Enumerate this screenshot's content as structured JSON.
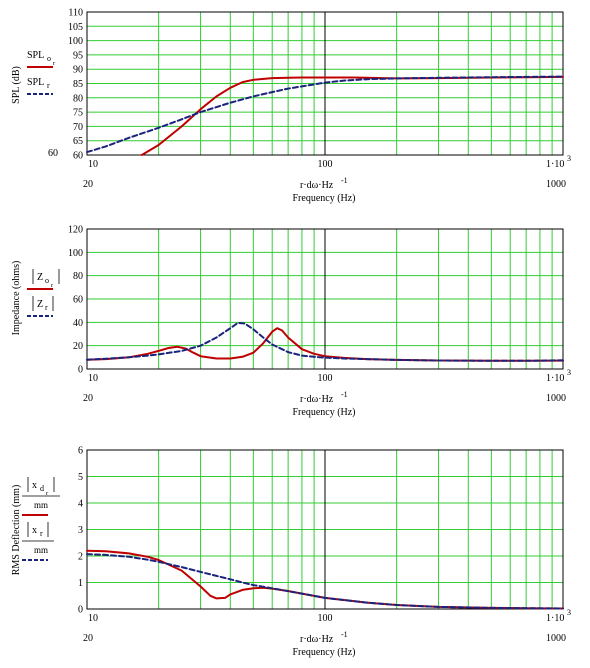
{
  "chart_data": [
    {
      "type": "line",
      "xscale": "log",
      "xlim": [
        10,
        1000
      ],
      "ylim": [
        60,
        110
      ],
      "ylabel": "SPL (dB)",
      "xlabel_expr": "r·dω·Hz",
      "xlabel_exp": "-1",
      "xlabel": "Frequency (Hz)",
      "y_ticks": [
        60,
        65,
        70,
        75,
        80,
        85,
        90,
        95,
        100,
        105,
        110
      ],
      "y_extra_tick": "60",
      "x_tick_labels": [
        "10",
        "100",
        "1·10"
      ],
      "x_tick_exp": "3",
      "x_range_labels": [
        "20",
        "1000"
      ],
      "legend": [
        {
          "label": "SPL",
          "sub": "o",
          "subsub": "r",
          "color": "#c00000",
          "dash": "solid"
        },
        {
          "label": "SPL",
          "sub": "r",
          "subsub": "",
          "color": "#1a237e",
          "dash": "dashed"
        }
      ],
      "series": [
        {
          "color": "#c00000",
          "dash": "solid",
          "x": [
            17,
            20,
            25,
            30,
            35,
            40,
            45,
            50,
            60,
            70,
            80,
            100,
            130,
            150,
            200,
            300,
            500,
            700,
            1000
          ],
          "y": [
            60,
            63.5,
            70,
            76,
            80.5,
            83.5,
            85.5,
            86.3,
            86.9,
            87,
            87.1,
            87.1,
            87.1,
            87,
            86.8,
            86.9,
            87.1,
            87.2,
            87.3
          ]
        },
        {
          "color": "#1a237e",
          "dash": "dashed",
          "x": [
            10,
            12,
            15,
            20,
            25,
            30,
            40,
            50,
            60,
            70,
            80,
            100,
            120,
            150,
            200,
            300,
            500,
            700,
            1000
          ],
          "y": [
            61,
            63,
            66,
            69.5,
            72.5,
            75,
            78.3,
            80.5,
            82,
            83.2,
            84,
            85.3,
            86,
            86.5,
            86.8,
            87,
            87.2,
            87.3,
            87.4
          ]
        }
      ]
    },
    {
      "type": "line",
      "xscale": "log",
      "xlim": [
        10,
        1000
      ],
      "ylim": [
        0,
        120
      ],
      "ylabel": "Impedance (ohms)",
      "xlabel_expr": "r·dω·Hz",
      "xlabel_exp": "-1",
      "xlabel": "Frequency (Hz)",
      "y_ticks": [
        0,
        20,
        40,
        60,
        80,
        100,
        120
      ],
      "x_tick_labels": [
        "10",
        "100",
        "1·10"
      ],
      "x_tick_exp": "3",
      "x_range_labels": [
        "20",
        "1000"
      ],
      "legend": [
        {
          "label": "Z",
          "sub": "o",
          "subsub": "r",
          "abs": true,
          "color": "#c00000",
          "dash": "solid"
        },
        {
          "label": "Z",
          "sub": "r",
          "subsub": "",
          "abs": true,
          "color": "#1a237e",
          "dash": "dashed"
        }
      ],
      "series": [
        {
          "color": "#c00000",
          "dash": "solid",
          "x": [
            10,
            12,
            15,
            18,
            20,
            22,
            24,
            26,
            28,
            30,
            35,
            40,
            45,
            50,
            55,
            60,
            63,
            66,
            70,
            80,
            90,
            100,
            120,
            150,
            200,
            300,
            500,
            700,
            1000
          ],
          "y": [
            8,
            8.5,
            10,
            13,
            15.5,
            18,
            19,
            17.5,
            14,
            11,
            9,
            9,
            10.5,
            14,
            22,
            32,
            35,
            33,
            27,
            17,
            13,
            11,
            9.5,
            8.5,
            7.8,
            7.3,
            7,
            7,
            7.2
          ]
        },
        {
          "color": "#1a237e",
          "dash": "dashed",
          "x": [
            10,
            12,
            15,
            18,
            20,
            25,
            30,
            35,
            40,
            43,
            46,
            50,
            55,
            60,
            70,
            80,
            90,
            100,
            120,
            150,
            200,
            300,
            500,
            700,
            1000
          ],
          "y": [
            8,
            8.8,
            10,
            11.5,
            12.5,
            15.5,
            20,
            27,
            35,
            39.5,
            39,
            34,
            27,
            21,
            14.5,
            11.5,
            10.5,
            9.8,
            9,
            8.5,
            7.8,
            7.3,
            7,
            7,
            7.5
          ]
        }
      ]
    },
    {
      "type": "line",
      "xscale": "log",
      "xlim": [
        10,
        1000
      ],
      "ylim": [
        0,
        6
      ],
      "ylabel": "RMS Deflection (mm)",
      "xlabel_expr": "r·dω·Hz",
      "xlabel_exp": "-1",
      "xlabel": "Frequency (Hz)",
      "y_ticks": [
        0,
        1,
        2,
        3,
        4,
        5,
        6
      ],
      "x_tick_labels": [
        "10",
        "100",
        "1·10"
      ],
      "x_tick_exp": "3",
      "x_range_labels": [
        "20",
        "1000"
      ],
      "legend": [
        {
          "label": "x",
          "sub": "d",
          "subsub": "r",
          "abs": true,
          "denom": "mm",
          "color": "#c00000",
          "dash": "solid"
        },
        {
          "label": "x",
          "sub": "r",
          "subsub": "",
          "abs": true,
          "denom": "mm",
          "color": "#1a237e",
          "dash": "dashed"
        }
      ],
      "series": [
        {
          "color": "#c00000",
          "dash": "solid",
          "x": [
            10,
            12,
            15,
            18,
            20,
            25,
            30,
            33,
            35,
            38,
            40,
            45,
            50,
            55,
            60,
            70,
            80,
            100,
            150,
            200,
            300,
            500,
            700,
            1000
          ],
          "y": [
            2.2,
            2.18,
            2.1,
            1.97,
            1.85,
            1.45,
            0.85,
            0.5,
            0.4,
            0.42,
            0.55,
            0.72,
            0.78,
            0.8,
            0.77,
            0.68,
            0.58,
            0.42,
            0.24,
            0.15,
            0.08,
            0.04,
            0.03,
            0.02
          ]
        },
        {
          "color": "#1a237e",
          "dash": "dashed",
          "x": [
            10,
            12,
            15,
            18,
            20,
            25,
            30,
            35,
            40,
            45,
            50,
            60,
            70,
            80,
            100,
            150,
            200,
            300,
            500,
            700,
            1000
          ],
          "y": [
            2.07,
            2.04,
            1.97,
            1.86,
            1.78,
            1.58,
            1.4,
            1.25,
            1.12,
            1.0,
            0.9,
            0.78,
            0.67,
            0.58,
            0.42,
            0.24,
            0.15,
            0.08,
            0.04,
            0.03,
            0.02
          ]
        }
      ]
    }
  ]
}
